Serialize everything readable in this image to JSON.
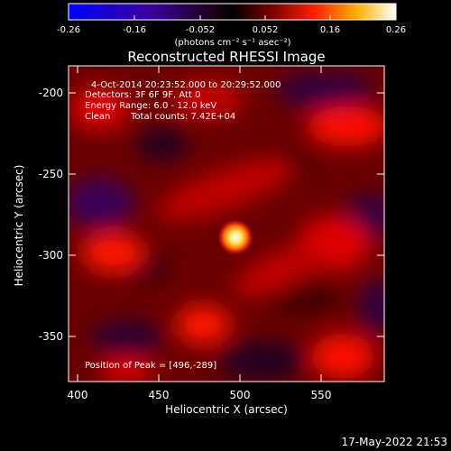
{
  "colorbar": {
    "ticks": [
      "-0.26",
      "-0.16",
      "-0.052",
      "0.052",
      "0.16",
      "0.26"
    ],
    "units": "(photons cm⁻² s⁻¹ asec⁻²)"
  },
  "title": "Reconstructed RHESSI Image",
  "info": {
    "line1": "4-Oct-2014 20:23:52.000 to 20:29:52.000",
    "line2": "Detectors: 3F 6F 9F, Att 0",
    "line3": "Energy Range: 6.0 - 12.0 keV",
    "line4_left": "Clean",
    "line4_right": "Total counts: 7.42E+04"
  },
  "peak_label": "Position of Peak = [496,-289]",
  "xaxis": {
    "label": "Heliocentric X (arcsec)",
    "ticks": [
      "400",
      "450",
      "500",
      "550"
    ]
  },
  "yaxis": {
    "label": "Heliocentric Y (arcsec)",
    "ticks": [
      "-200",
      "-250",
      "-300",
      "-350"
    ]
  },
  "timestamp": "17-May-2022 21:53",
  "colors": {
    "background": "#000000",
    "text": "#ffffff"
  }
}
